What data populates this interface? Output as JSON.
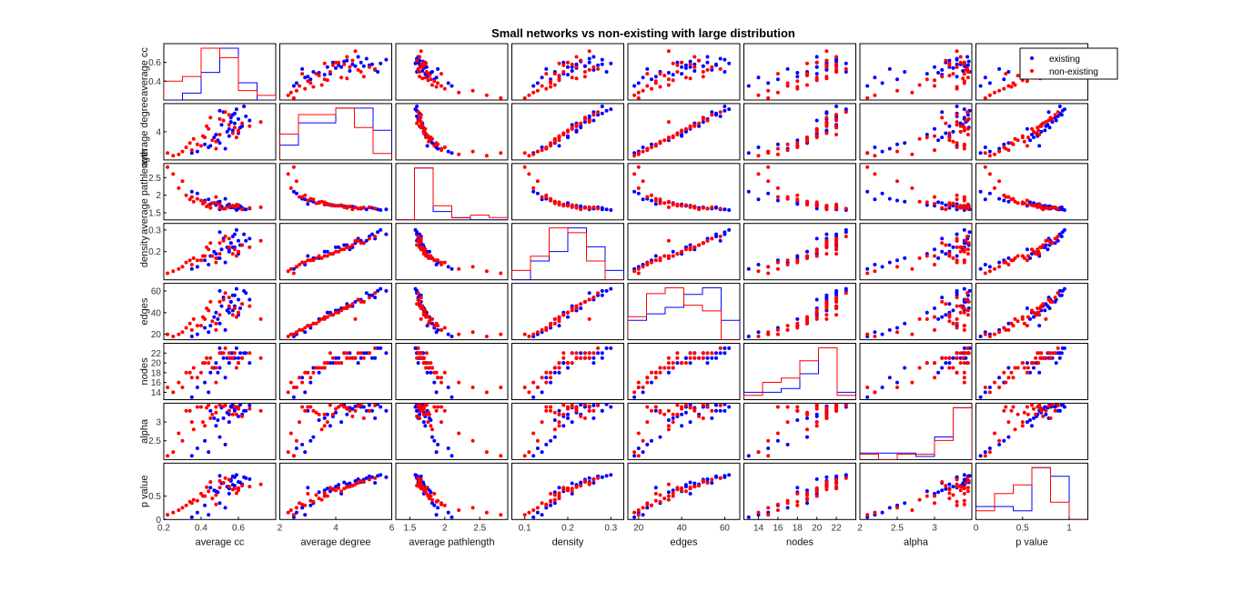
{
  "chart_data": {
    "type": "scatter",
    "title": "Small networks vs non-existing with large distribution",
    "variables": [
      "average cc",
      "average degree",
      "average pathlength",
      "density",
      "edges",
      "nodes",
      "alpha",
      "p value"
    ],
    "ranges": [
      [
        0.2,
        0.8
      ],
      [
        2,
        6
      ],
      [
        1.3,
        2.9
      ],
      [
        0.07,
        0.33
      ],
      [
        15,
        67
      ],
      [
        12.5,
        24
      ],
      [
        2,
        3.5
      ],
      [
        0,
        1.2
      ]
    ],
    "x_ticks": [
      [
        0.2,
        0.4,
        0.6
      ],
      [
        2,
        4,
        6
      ],
      [
        1.5,
        2,
        2.5
      ],
      [
        0.1,
        0.2,
        0.3
      ],
      [
        20,
        40,
        60
      ],
      [
        14,
        16,
        18,
        20,
        22
      ],
      [
        2,
        2.5,
        3
      ],
      [
        0,
        0.5,
        1
      ]
    ],
    "y_ticks": [
      [
        0.4,
        0.6
      ],
      [
        4
      ],
      [
        1.5,
        2,
        2.5
      ],
      [
        0.2,
        0.3
      ],
      [
        20,
        40,
        60
      ],
      [
        14,
        16,
        18,
        20,
        22
      ],
      [
        2.5,
        3
      ],
      [
        0,
        0.5
      ]
    ],
    "series": [
      {
        "name": "existing",
        "color": "#0000ff",
        "points": [
          [
            0.52,
            5.4,
            1.62,
            0.26,
            54,
            21,
            3.1,
            0.78
          ],
          [
            0.56,
            5.0,
            1.65,
            0.24,
            50,
            22,
            3.4,
            0.85
          ],
          [
            0.63,
            5.8,
            1.6,
            0.28,
            60,
            22,
            3.3,
            0.9
          ],
          [
            0.48,
            3.8,
            1.72,
            0.19,
            40,
            20,
            2.9,
            0.6
          ],
          [
            0.58,
            4.6,
            1.68,
            0.22,
            46,
            21,
            3.35,
            0.72
          ],
          [
            0.6,
            4.9,
            1.62,
            0.25,
            52,
            21,
            3.4,
            0.8
          ],
          [
            0.55,
            4.2,
            1.7,
            0.21,
            44,
            20,
            3.0,
            0.55
          ],
          [
            0.5,
            3.2,
            1.82,
            0.17,
            30,
            19,
            2.6,
            0.35
          ],
          [
            0.45,
            3.0,
            1.75,
            0.18,
            28,
            18,
            3.3,
            0.68
          ],
          [
            0.57,
            5.2,
            1.66,
            0.27,
            56,
            22,
            3.45,
            0.92
          ],
          [
            0.62,
            4.4,
            1.64,
            0.23,
            48,
            21,
            3.2,
            0.75
          ],
          [
            0.53,
            2.8,
            1.9,
            0.15,
            24,
            17,
            2.4,
            0.25
          ],
          [
            0.59,
            5.6,
            1.58,
            0.3,
            62,
            23,
            3.4,
            0.95
          ],
          [
            0.47,
            3.6,
            1.78,
            0.2,
            36,
            19,
            3.1,
            0.62
          ],
          [
            0.54,
            4.0,
            1.7,
            0.22,
            42,
            21,
            3.25,
            0.7
          ],
          [
            0.64,
            5.1,
            1.6,
            0.25,
            58,
            22,
            3.3,
            0.88
          ],
          [
            0.42,
            3.1,
            1.85,
            0.16,
            26,
            16,
            2.5,
            0.3
          ],
          [
            0.56,
            4.7,
            1.66,
            0.24,
            50,
            21,
            3.42,
            0.82
          ],
          [
            0.6,
            3.9,
            1.72,
            0.19,
            38,
            20,
            3.15,
            0.65
          ],
          [
            0.51,
            4.5,
            1.68,
            0.21,
            46,
            22,
            3.38,
            0.77
          ],
          [
            0.38,
            2.6,
            2.05,
            0.13,
            20,
            15,
            2.3,
            0.15
          ],
          [
            0.66,
            4.8,
            1.62,
            0.26,
            52,
            20,
            3.44,
            0.86
          ],
          [
            0.49,
            3.4,
            1.8,
            0.17,
            34,
            18,
            3.05,
            0.58
          ],
          [
            0.58,
            5.3,
            1.64,
            0.28,
            56,
            21,
            3.3,
            0.9
          ],
          [
            0.44,
            2.9,
            1.88,
            0.14,
            22,
            14,
            2.2,
            0.1
          ],
          [
            0.61,
            4.3,
            1.69,
            0.23,
            44,
            22,
            3.46,
            0.79
          ],
          [
            0.55,
            3.7,
            1.74,
            0.2,
            40,
            20,
            3.2,
            0.66
          ],
          [
            0.35,
            2.5,
            2.1,
            0.12,
            18,
            13,
            2.1,
            0.05
          ],
          [
            0.57,
            4.1,
            1.7,
            0.22,
            42,
            21,
            3.4,
            0.74
          ],
          [
            0.5,
            5.5,
            1.6,
            0.29,
            60,
            23,
            3.47,
            0.93
          ]
        ]
      },
      {
        "name": "non-existing",
        "color": "#ff0000",
        "points": [
          [
            0.46,
            3.4,
            1.78,
            0.18,
            32,
            19,
            3.2,
            0.45
          ],
          [
            0.4,
            3.0,
            1.85,
            0.16,
            28,
            18,
            3.4,
            0.55
          ],
          [
            0.55,
            4.5,
            1.68,
            0.22,
            46,
            21,
            3.3,
            0.7
          ],
          [
            0.35,
            2.7,
            1.95,
            0.14,
            24,
            17,
            3.0,
            0.35
          ],
          [
            0.6,
            4.0,
            1.7,
            0.2,
            40,
            20,
            3.35,
            0.62
          ],
          [
            0.28,
            2.4,
            2.2,
            0.12,
            20,
            16,
            2.7,
            0.2
          ],
          [
            0.5,
            3.8,
            1.74,
            0.19,
            38,
            22,
            3.45,
            0.68
          ],
          [
            0.45,
            5.0,
            1.64,
            0.24,
            50,
            21,
            3.1,
            0.8
          ],
          [
            0.32,
            2.9,
            2.0,
            0.15,
            26,
            18,
            3.3,
            0.3
          ],
          [
            0.58,
            4.3,
            1.66,
            0.21,
            44,
            22,
            3.4,
            0.66
          ],
          [
            0.42,
            3.6,
            1.8,
            0.18,
            34,
            20,
            2.9,
            0.5
          ],
          [
            0.25,
            2.3,
            2.6,
            0.11,
            18,
            14,
            2.2,
            0.15
          ],
          [
            0.52,
            4.8,
            1.62,
            0.25,
            52,
            22,
            3.42,
            0.78
          ],
          [
            0.48,
            3.3,
            1.77,
            0.17,
            30,
            19,
            3.25,
            0.52
          ],
          [
            0.62,
            4.6,
            1.6,
            0.23,
            48,
            21,
            3.15,
            0.72
          ],
          [
            0.38,
            3.1,
            1.9,
            0.16,
            28,
            17,
            3.4,
            0.4
          ],
          [
            0.55,
            5.2,
            1.66,
            0.26,
            54,
            22,
            3.3,
            0.85
          ],
          [
            0.3,
            2.6,
            2.4,
            0.13,
            22,
            15,
            2.5,
            0.25
          ],
          [
            0.44,
            4.2,
            1.72,
            0.21,
            42,
            20,
            3.45,
            0.6
          ],
          [
            0.57,
            3.9,
            1.7,
            0.19,
            38,
            21,
            3.2,
            0.64
          ],
          [
            0.36,
            3.5,
            1.82,
            0.17,
            34,
            19,
            2.8,
            0.42
          ],
          [
            0.66,
            4.4,
            1.64,
            0.22,
            46,
            22,
            3.35,
            0.7
          ],
          [
            0.48,
            2.8,
            1.95,
            0.15,
            24,
            16,
            3.4,
            0.32
          ],
          [
            0.53,
            5.4,
            1.62,
            0.27,
            58,
            23,
            3.44,
            0.88
          ],
          [
            0.41,
            3.7,
            1.76,
            0.18,
            36,
            20,
            3.0,
            0.5
          ],
          [
            0.72,
            4.7,
            1.66,
            0.25,
            34,
            21,
            3.3,
            0.75
          ],
          [
            0.6,
            4.1,
            1.7,
            0.2,
            40,
            20,
            3.4,
            0.67
          ],
          [
            0.22,
            2.5,
            2.8,
            0.1,
            20,
            15,
            2.1,
            0.1
          ],
          [
            0.5,
            4.9,
            1.64,
            0.24,
            50,
            22,
            3.46,
            0.82
          ],
          [
            0.34,
            3.2,
            1.88,
            0.16,
            30,
            18,
            3.3,
            0.38
          ],
          [
            0.59,
            3.6,
            1.73,
            0.18,
            36,
            19,
            3.2,
            0.56
          ],
          [
            0.43,
            4.4,
            1.68,
            0.22,
            44,
            21,
            3.38,
            0.69
          ]
        ]
      }
    ],
    "legend": {
      "entries": [
        "existing",
        "non-existing"
      ],
      "placement": "top-right"
    },
    "grid": false
  }
}
